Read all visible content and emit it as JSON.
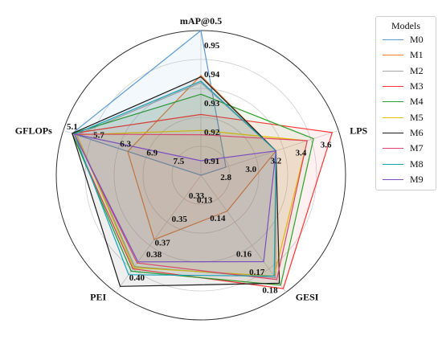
{
  "chart_data": {
    "type": "radar",
    "axes": [
      {
        "name": "mAP@0.5",
        "ticks": [
          "0.91",
          "0.92",
          "0.93",
          "0.94",
          "0.95"
        ],
        "tick_values": [
          0.91,
          0.92,
          0.93,
          0.94,
          0.95
        ],
        "range": [
          0.905,
          0.955
        ]
      },
      {
        "name": "LPS",
        "ticks": [
          "2.8",
          "3.0",
          "3.2",
          "3.4",
          "3.6"
        ],
        "tick_values": [
          2.8,
          3.0,
          3.2,
          3.4,
          3.6
        ],
        "range": [
          2.6,
          3.7
        ]
      },
      {
        "name": "GESI",
        "ticks": [
          "0.13",
          "0.14",
          "0.16",
          "0.17",
          "0.18"
        ],
        "tick_values": [
          0.13,
          0.14,
          0.16,
          0.17,
          0.18
        ],
        "range": [
          0.12,
          0.185
        ]
      },
      {
        "name": "PEI",
        "ticks": [
          "0.33",
          "0.35",
          "0.37",
          "0.38",
          "0.40"
        ],
        "tick_values": [
          0.33,
          0.35,
          0.37,
          0.38,
          0.4
        ],
        "range": [
          0.31,
          0.41
        ]
      },
      {
        "name": "GFLOPs",
        "ticks": [
          "7.5",
          "6.9",
          "6.3",
          "5.7",
          "5.1"
        ],
        "tick_values": [
          7.5,
          6.9,
          6.3,
          5.7,
          5.1
        ],
        "range": [
          8.0,
          4.9
        ]
      }
    ],
    "legend_title": "Models",
    "legend_position": "right",
    "series": [
      {
        "name": "M0",
        "color": "#5b9bd5",
        "values": [
          0.955,
          2.8,
          0.12,
          0.31,
          5.1
        ]
      },
      {
        "name": "M1",
        "color": "#ed7d31",
        "values": [
          0.9395,
          3.2,
          0.14,
          0.365,
          6.35
        ]
      },
      {
        "name": "M2",
        "color": "#a5a5a5",
        "values": [
          0.937,
          3.2,
          0.177,
          0.388,
          5.2
        ]
      },
      {
        "name": "M3",
        "color": "#ff3333",
        "values": [
          0.926,
          3.65,
          0.183,
          0.39,
          5.1
        ]
      },
      {
        "name": "M4",
        "color": "#2ca02c",
        "values": [
          0.933,
          3.5,
          0.181,
          0.392,
          5.1
        ]
      },
      {
        "name": "M5",
        "color": "#e5c100",
        "values": [
          0.9205,
          3.45,
          0.176,
          0.389,
          5.2
        ]
      },
      {
        "name": "M6",
        "color": "#1a1a1a",
        "values": [
          0.939,
          3.2,
          0.18,
          0.405,
          5.1
        ]
      },
      {
        "name": "M7",
        "color": "#e0446a",
        "values": [
          0.919,
          3.45,
          0.178,
          0.385,
          5.15
        ]
      },
      {
        "name": "M8",
        "color": "#17a2b8",
        "values": [
          0.9375,
          3.2,
          0.176,
          0.395,
          5.15
        ]
      },
      {
        "name": "M9",
        "color": "#7b4fbf",
        "values": [
          0.91,
          3.2,
          0.168,
          0.384,
          5.15
        ]
      }
    ]
  }
}
